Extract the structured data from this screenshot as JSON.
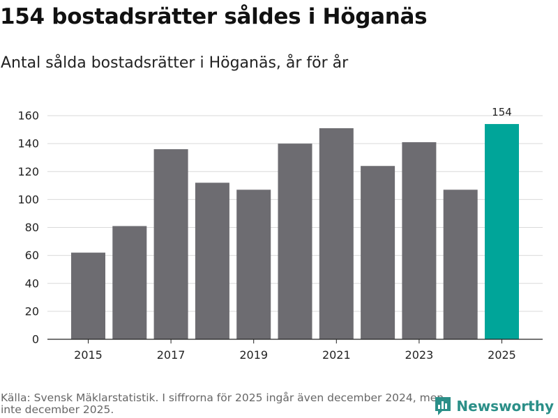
{
  "title": "154 bostadsrätter såldes i Höganäs",
  "subtitle": "Antal sålda bostadsrätter i Höganäs, år för år",
  "source": "Källa: Svensk Mäklarstatistik. I siffrorna för 2025 ingår även december 2024, men inte december 2025.",
  "brand": "Newsworthy",
  "colors": {
    "bar": "#6d6c71",
    "highlight": "#00a599",
    "grid": "#d9d9d9",
    "brand": "#2b8f88"
  },
  "chart_data": {
    "type": "bar",
    "title": "154 bostadsrätter såldes i Höganäs",
    "subtitle": "Antal sålda bostadsrätter i Höganäs, år för år",
    "categories": [
      "2015",
      "2016",
      "2017",
      "2018",
      "2019",
      "2020",
      "2021",
      "2022",
      "2023",
      "2024",
      "2025"
    ],
    "values": [
      62,
      81,
      136,
      112,
      107,
      140,
      151,
      124,
      141,
      107,
      154
    ],
    "highlight_index": 10,
    "data_labels": [
      {
        "index": 10,
        "text": "154"
      }
    ],
    "x_tick_labels": [
      "2015",
      "2017",
      "2019",
      "2021",
      "2023",
      "2025"
    ],
    "y_ticks": [
      0,
      20,
      40,
      60,
      80,
      100,
      120,
      140,
      160
    ],
    "ylim": [
      0,
      160
    ],
    "xlabel": "",
    "ylabel": "",
    "grid": true
  }
}
